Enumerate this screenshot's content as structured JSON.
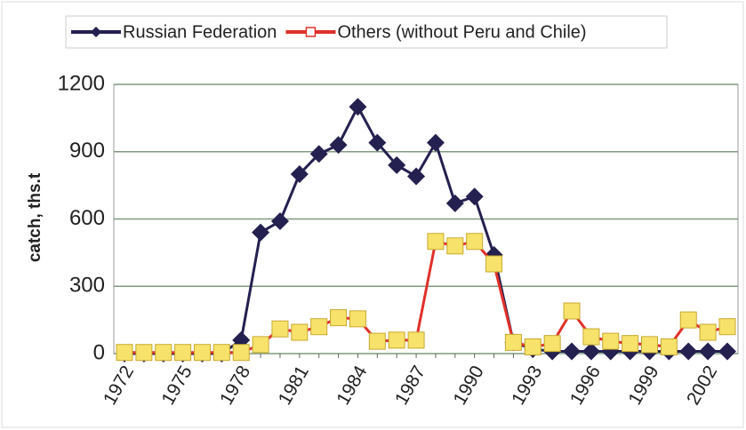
{
  "chart_data": {
    "type": "line",
    "y_label": "catch, ths.t",
    "categories": [
      "1972",
      null,
      null,
      "1975",
      null,
      null,
      "1978",
      null,
      null,
      "1981",
      null,
      null,
      "1984",
      null,
      null,
      "1987",
      null,
      null,
      "1990",
      null,
      null,
      "1993",
      null,
      null,
      "1996",
      null,
      null,
      "1999",
      null,
      null,
      "2002",
      null
    ],
    "series": [
      {
        "name": "Russian Federation",
        "color": "#24204f",
        "marker": "diamond",
        "values": [
          0,
          0,
          0,
          0,
          0,
          0,
          60,
          540,
          590,
          800,
          890,
          930,
          1100,
          940,
          840,
          790,
          940,
          670,
          700,
          440,
          50,
          20,
          10,
          10,
          10,
          10,
          10,
          10,
          10,
          10,
          10,
          10
        ]
      },
      {
        "name": "Others (without Peru and Chile)",
        "color": "#e0302a",
        "marker": "square",
        "values": [
          5,
          5,
          5,
          5,
          5,
          5,
          5,
          40,
          110,
          95,
          120,
          160,
          155,
          55,
          60,
          60,
          500,
          480,
          500,
          400,
          50,
          30,
          45,
          190,
          75,
          55,
          45,
          40,
          30,
          150,
          95,
          120
        ]
      }
    ],
    "ylim": [
      0,
      1200
    ],
    "yticks": [
      0,
      300,
      600,
      900,
      1200
    ],
    "grid": true,
    "legend": "top"
  }
}
